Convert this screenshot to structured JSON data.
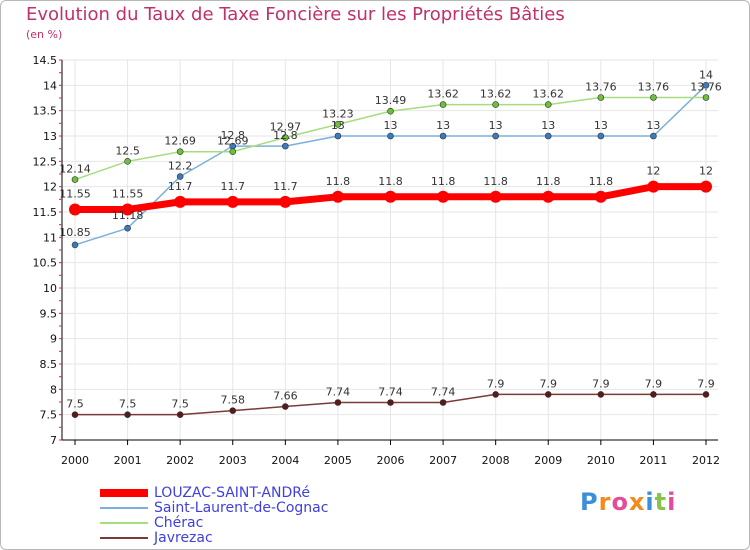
{
  "header": {
    "title": "Evolution du Taux de Taxe Foncière sur les Propriétés Bâties",
    "subtitle": "(en %)"
  },
  "logo": {
    "text": "Proxiti",
    "colors": [
      "#3a8fd8",
      "#f28a1c",
      "#e84a9a",
      "#f28a1c",
      "#3a8fd8",
      "#8bc34a",
      "#e84a9a"
    ]
  },
  "chart_data": {
    "type": "line",
    "x": [
      "2000",
      "2001",
      "2002",
      "2003",
      "2004",
      "2005",
      "2006",
      "2007",
      "2008",
      "2009",
      "2010",
      "2011",
      "2012"
    ],
    "ylim": [
      7,
      14.5
    ],
    "yticks": [
      "7",
      "7.5",
      "8",
      "8.5",
      "9",
      "9.5",
      "10",
      "10.5",
      "11",
      "11.5",
      "12",
      "12.5",
      "13",
      "13.5",
      "14",
      "14.5"
    ],
    "grid": true,
    "legend_position": "bottom-left",
    "series": [
      {
        "name": "LOUZAC-SAINT-ANDRé",
        "color": "#ff0000",
        "width": 7,
        "marker": 6,
        "values": [
          11.55,
          11.55,
          11.7,
          11.7,
          11.7,
          11.8,
          11.8,
          11.8,
          11.8,
          11.8,
          11.8,
          12,
          12
        ],
        "labels": [
          "11.55",
          "11.55",
          "11.7",
          "11.7",
          "11.7",
          "11.8",
          "11.8",
          "11.8",
          "11.8",
          "11.8",
          "11.8",
          "12",
          "12"
        ]
      },
      {
        "name": "Saint-Laurent-de-Cognac",
        "color": "#7ab0dc",
        "width": 1.5,
        "marker": 3,
        "marker_color": "#3a7abf",
        "values": [
          10.85,
          11.18,
          12.2,
          12.8,
          12.8,
          13,
          13,
          13,
          13,
          13,
          13,
          13,
          14
        ],
        "labels": [
          "10.85",
          "11.18",
          "12.2",
          "12.8",
          "12.8",
          "13",
          "13",
          "13",
          "13",
          "13",
          "13",
          "13",
          "14"
        ]
      },
      {
        "name": "Chérac",
        "color": "#a8dc80",
        "width": 1.5,
        "marker": 3,
        "marker_color": "#6cc03a",
        "values": [
          12.14,
          12.5,
          12.69,
          12.69,
          12.97,
          13.23,
          13.49,
          13.62,
          13.62,
          13.62,
          13.76,
          13.76,
          13.76
        ],
        "labels": [
          "12.14",
          "12.5",
          "12.69",
          "12.69",
          "12.97",
          "13.23",
          "13.49",
          "13.62",
          "13.62",
          "13.62",
          "13.76",
          "13.76",
          "13.76"
        ]
      },
      {
        "name": "Javrezac",
        "color": "#7a3a3a",
        "width": 1.5,
        "marker": 3,
        "marker_color": "#5a1a1a",
        "values": [
          7.5,
          7.5,
          7.5,
          7.58,
          7.66,
          7.74,
          7.74,
          7.74,
          7.9,
          7.9,
          7.9,
          7.9,
          7.9
        ],
        "labels": [
          "7.5",
          "7.5",
          "7.5",
          "7.58",
          "7.66",
          "7.74",
          "7.74",
          "7.74",
          "7.9",
          "7.9",
          "7.9",
          "7.9",
          "7.9"
        ]
      }
    ]
  }
}
